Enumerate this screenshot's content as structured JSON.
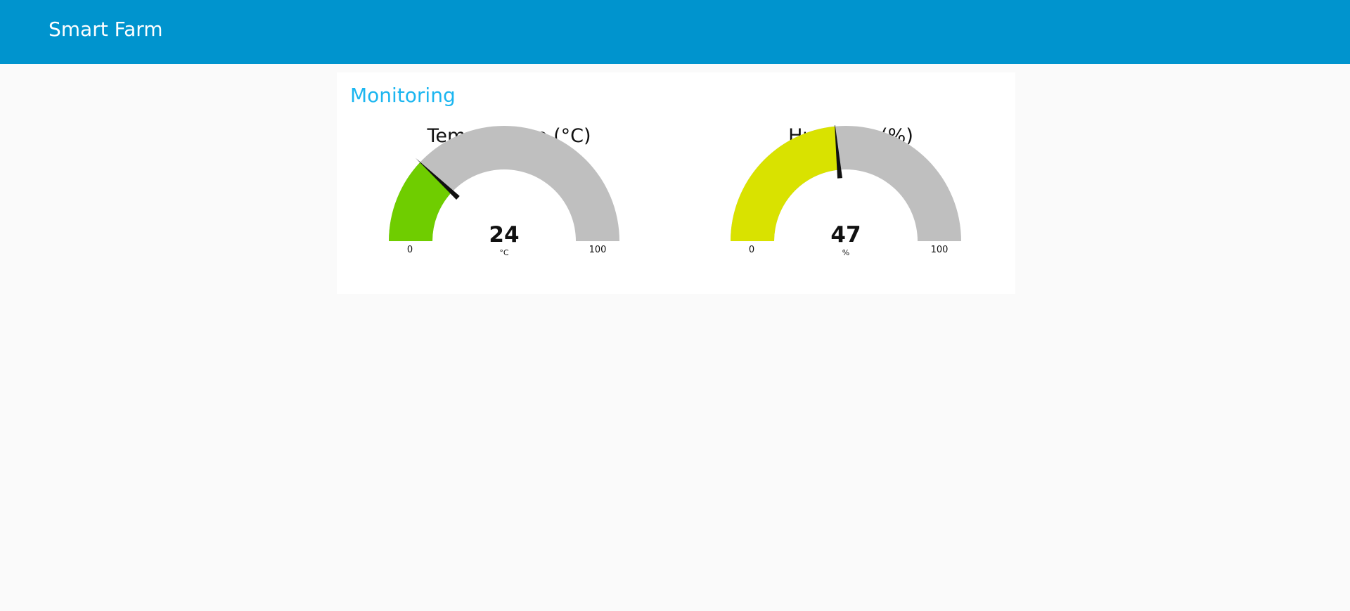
{
  "header": {
    "title": "Smart Farm",
    "color": "#0094ce"
  },
  "group": {
    "title": "Monitoring",
    "title_color": "#1bb6f0"
  },
  "gauges": [
    {
      "title": "Temperature (°C)",
      "value": 24,
      "value_label": "24",
      "unit": "°C",
      "min": 0,
      "max": 100,
      "min_label": "0",
      "max_label": "100",
      "fill_color": "#6fcd00",
      "track_color": "#bfbfbf"
    },
    {
      "title": "Humidity (%)",
      "value": 47,
      "value_label": "47",
      "unit": "%",
      "min": 0,
      "max": 100,
      "min_label": "0",
      "max_label": "100",
      "fill_color": "#d9e200",
      "track_color": "#bfbfbf"
    }
  ]
}
